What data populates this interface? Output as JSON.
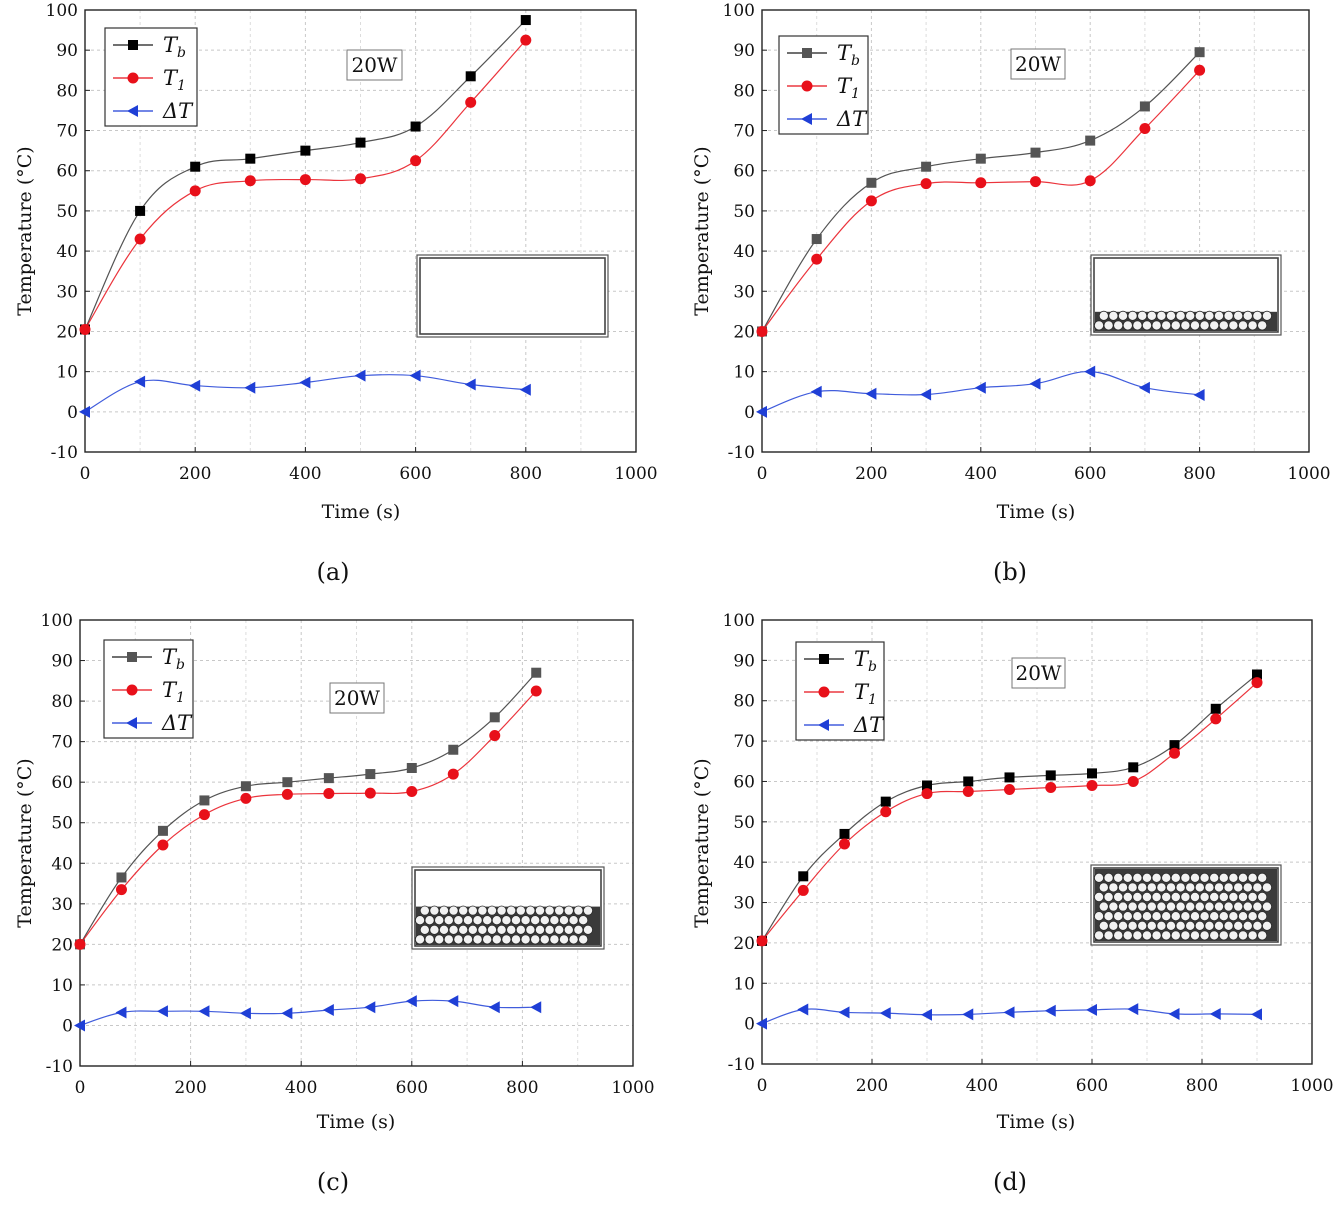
{
  "figure": {
    "panels": [
      {
        "caption": "(a)",
        "inset": "empty",
        "power_label": "20W",
        "legend": {
          "tb": "T",
          "tb_sub": "b",
          "t1": "T",
          "t1_sub": "1",
          "dt": "ΔT"
        },
        "tb_marker_color": "#000000"
      },
      {
        "caption": "(b)",
        "inset": "one_layer",
        "power_label": "20W",
        "legend": {
          "tb": "T",
          "tb_sub": "b",
          "t1": "T",
          "t1_sub": "1",
          "dt": "ΔT"
        },
        "tb_marker_color": "#555555"
      },
      {
        "caption": "(c)",
        "inset": "two_layers",
        "power_label": "20W",
        "legend": {
          "tb": "T",
          "tb_sub": "b",
          "t1": "T",
          "t1_sub": "1",
          "dt": "ΔT"
        },
        "tb_marker_color": "#555555"
      },
      {
        "caption": "(d)",
        "inset": "full",
        "power_label": "20W",
        "legend": {
          "tb": "T",
          "tb_sub": "b",
          "t1": "T",
          "t1_sub": "1",
          "dt": "ΔT"
        },
        "tb_marker_color": "#000000"
      }
    ],
    "colors": {
      "tb": "#1a1a1a",
      "t1": "#e8101a",
      "dt": "#1f3fd6",
      "grid": "#c8c8c8"
    }
  },
  "chart_data": [
    {
      "type": "line",
      "title": "(a)",
      "xlabel": "Time (s)",
      "ylabel": "Temperature (°C)",
      "xlim": [
        0,
        1000
      ],
      "ylim": [
        -10,
        100
      ],
      "xticks": [
        0,
        200,
        400,
        600,
        800,
        1000
      ],
      "yticks": [
        -10,
        0,
        10,
        20,
        30,
        40,
        50,
        60,
        70,
        80,
        90,
        100
      ],
      "series": [
        {
          "name": "Tb",
          "x": [
            0,
            100,
            200,
            300,
            400,
            500,
            600,
            700,
            800
          ],
          "y": [
            20.5,
            50,
            61,
            63,
            65,
            67,
            71,
            83.5,
            97.5
          ]
        },
        {
          "name": "T1",
          "x": [
            0,
            100,
            200,
            300,
            400,
            500,
            600,
            700,
            800
          ],
          "y": [
            20.5,
            43,
            55,
            57.5,
            57.8,
            58,
            62.5,
            77,
            92.5
          ]
        },
        {
          "name": "ΔT",
          "x": [
            0,
            100,
            200,
            300,
            400,
            500,
            600,
            700,
            800
          ],
          "y": [
            0,
            7.5,
            6.5,
            6,
            7.3,
            9,
            9,
            6.8,
            5.5
          ]
        }
      ],
      "annotation": "20W"
    },
    {
      "type": "line",
      "title": "(b)",
      "xlabel": "Time (s)",
      "ylabel": "Temperature (°C)",
      "xlim": [
        0,
        1000
      ],
      "ylim": [
        -10,
        100
      ],
      "xticks": [
        0,
        200,
        400,
        600,
        800,
        1000
      ],
      "yticks": [
        -10,
        0,
        10,
        20,
        30,
        40,
        50,
        60,
        70,
        80,
        90,
        100
      ],
      "series": [
        {
          "name": "Tb",
          "x": [
            0,
            100,
            200,
            300,
            400,
            500,
            600,
            700,
            800
          ],
          "y": [
            20,
            43,
            57,
            61,
            63,
            64.5,
            67.5,
            76,
            89.5
          ]
        },
        {
          "name": "T1",
          "x": [
            0,
            100,
            200,
            300,
            400,
            500,
            600,
            700,
            800
          ],
          "y": [
            20,
            38,
            52.5,
            56.8,
            57,
            57.3,
            57.5,
            70.5,
            85
          ]
        },
        {
          "name": "ΔT",
          "x": [
            0,
            100,
            200,
            300,
            400,
            500,
            600,
            700,
            800
          ],
          "y": [
            0,
            5,
            4.5,
            4.3,
            6,
            7,
            10,
            6,
            4.2
          ]
        }
      ],
      "annotation": "20W"
    },
    {
      "type": "line",
      "title": "(c)",
      "xlabel": "Time (s)",
      "ylabel": "Temperature (°C)",
      "xlim": [
        0,
        1000
      ],
      "ylim": [
        -10,
        100
      ],
      "xticks": [
        0,
        200,
        400,
        600,
        800,
        1000
      ],
      "yticks": [
        -10,
        0,
        10,
        20,
        30,
        40,
        50,
        60,
        70,
        80,
        90,
        100
      ],
      "series": [
        {
          "name": "Tb",
          "x": [
            0,
            75,
            150,
            225,
            300,
            375,
            450,
            525,
            600,
            675,
            750,
            825
          ],
          "y": [
            20,
            36.5,
            48,
            55.5,
            59,
            60,
            61,
            62,
            63.5,
            68,
            76,
            87
          ]
        },
        {
          "name": "T1",
          "x": [
            0,
            75,
            150,
            225,
            300,
            375,
            450,
            525,
            600,
            675,
            750,
            825
          ],
          "y": [
            20,
            33.5,
            44.5,
            52,
            56,
            57,
            57.2,
            57.3,
            57.7,
            62,
            71.5,
            82.5
          ]
        },
        {
          "name": "ΔT",
          "x": [
            0,
            75,
            150,
            225,
            300,
            375,
            450,
            525,
            600,
            675,
            750,
            825
          ],
          "y": [
            0,
            3.2,
            3.5,
            3.5,
            3,
            3,
            3.8,
            4.5,
            6,
            6,
            4.5,
            4.5
          ]
        }
      ],
      "annotation": "20W"
    },
    {
      "type": "line",
      "title": "(d)",
      "xlabel": "Time (s)",
      "ylabel": "Temperature (°C)",
      "xlim": [
        0,
        1000
      ],
      "ylim": [
        -10,
        100
      ],
      "xticks": [
        0,
        200,
        400,
        600,
        800,
        1000
      ],
      "yticks": [
        -10,
        0,
        10,
        20,
        30,
        40,
        50,
        60,
        70,
        80,
        90,
        100
      ],
      "series": [
        {
          "name": "Tb",
          "x": [
            0,
            75,
            150,
            225,
            300,
            375,
            450,
            525,
            600,
            675,
            750,
            825,
            900
          ],
          "y": [
            20.5,
            36.5,
            47,
            55,
            59,
            60,
            61,
            61.5,
            62,
            63.5,
            69,
            78,
            86.5
          ]
        },
        {
          "name": "T1",
          "x": [
            0,
            75,
            150,
            225,
            300,
            375,
            450,
            525,
            600,
            675,
            750,
            825,
            900
          ],
          "y": [
            20.5,
            33,
            44.5,
            52.5,
            57,
            57.5,
            58,
            58.5,
            59,
            60,
            67,
            75.5,
            84.5
          ]
        },
        {
          "name": "ΔT",
          "x": [
            0,
            75,
            150,
            225,
            300,
            375,
            450,
            525,
            600,
            675,
            750,
            825,
            900
          ],
          "y": [
            0,
            3.5,
            2.8,
            2.6,
            2.2,
            2.3,
            2.8,
            3.2,
            3.4,
            3.6,
            2.4,
            2.4,
            2.3
          ]
        }
      ],
      "annotation": "20W"
    }
  ]
}
